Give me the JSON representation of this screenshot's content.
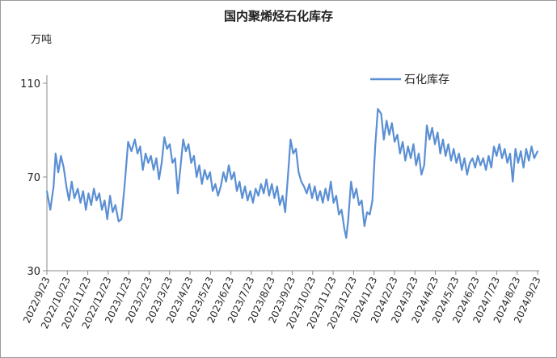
{
  "chart_data": {
    "type": "line",
    "title": "国内聚烯烃石化库存",
    "ylabel": "万吨",
    "ylim": [
      30,
      110
    ],
    "yticks": [
      30,
      70,
      110
    ],
    "legend_position": "top-right",
    "grid": false,
    "x_tick_labels": [
      "2022/9/23",
      "2022/10/23",
      "2022/11/23",
      "2022/12/23",
      "2023/1/23",
      "2023/2/23",
      "2023/3/23",
      "2023/4/23",
      "2023/5/23",
      "2023/6/23",
      "2023/7/23",
      "2023/8/23",
      "2023/9/23",
      "2023/10/23",
      "2023/11/23",
      "2023/12/23",
      "2024/1/23",
      "2024/2/23",
      "2024/3/23",
      "2024/4/23",
      "2024/5/23",
      "2024/6/23",
      "2024/7/23",
      "2024/8/23",
      "2024/9/23"
    ],
    "series": [
      {
        "name": "石化库存",
        "color": "#5b8fd4",
        "points": [
          [
            "2022-09-23",
            64
          ],
          [
            "2022-09-28",
            56
          ],
          [
            "2022-10-03",
            66
          ],
          [
            "2022-10-06",
            80
          ],
          [
            "2022-10-10",
            72
          ],
          [
            "2022-10-14",
            79
          ],
          [
            "2022-10-18",
            74
          ],
          [
            "2022-10-22",
            66
          ],
          [
            "2022-10-26",
            60
          ],
          [
            "2022-10-30",
            68
          ],
          [
            "2022-11-03",
            61
          ],
          [
            "2022-11-08",
            65
          ],
          [
            "2022-11-12",
            59
          ],
          [
            "2022-11-16",
            64
          ],
          [
            "2022-11-20",
            56
          ],
          [
            "2022-11-24",
            63
          ],
          [
            "2022-11-28",
            58
          ],
          [
            "2022-12-02",
            65
          ],
          [
            "2022-12-06",
            60
          ],
          [
            "2022-12-10",
            63
          ],
          [
            "2022-12-14",
            56
          ],
          [
            "2022-12-18",
            60
          ],
          [
            "2022-12-22",
            52
          ],
          [
            "2022-12-26",
            62
          ],
          [
            "2022-12-30",
            55
          ],
          [
            "2023-01-03",
            58
          ],
          [
            "2023-01-08",
            51
          ],
          [
            "2023-01-12",
            52
          ],
          [
            "2023-01-17",
            67
          ],
          [
            "2023-01-22",
            85
          ],
          [
            "2023-01-27",
            81
          ],
          [
            "2023-02-01",
            86
          ],
          [
            "2023-02-05",
            80
          ],
          [
            "2023-02-09",
            83
          ],
          [
            "2023-02-13",
            73
          ],
          [
            "2023-02-17",
            80
          ],
          [
            "2023-02-21",
            76
          ],
          [
            "2023-02-25",
            79
          ],
          [
            "2023-03-01",
            73
          ],
          [
            "2023-03-05",
            78
          ],
          [
            "2023-03-09",
            69
          ],
          [
            "2023-03-13",
            76
          ],
          [
            "2023-03-17",
            87
          ],
          [
            "2023-03-21",
            82
          ],
          [
            "2023-03-25",
            84
          ],
          [
            "2023-03-29",
            76
          ],
          [
            "2023-04-02",
            78
          ],
          [
            "2023-04-06",
            63
          ],
          [
            "2023-04-10",
            74
          ],
          [
            "2023-04-14",
            86
          ],
          [
            "2023-04-18",
            81
          ],
          [
            "2023-04-22",
            84
          ],
          [
            "2023-04-26",
            76
          ],
          [
            "2023-04-30",
            79
          ],
          [
            "2023-05-04",
            70
          ],
          [
            "2023-05-08",
            75
          ],
          [
            "2023-05-12",
            67
          ],
          [
            "2023-05-16",
            73
          ],
          [
            "2023-05-20",
            69
          ],
          [
            "2023-05-24",
            72
          ],
          [
            "2023-05-28",
            64
          ],
          [
            "2023-06-01",
            67
          ],
          [
            "2023-06-05",
            62
          ],
          [
            "2023-06-09",
            66
          ],
          [
            "2023-06-13",
            72
          ],
          [
            "2023-06-17",
            68
          ],
          [
            "2023-06-21",
            75
          ],
          [
            "2023-06-25",
            69
          ],
          [
            "2023-06-29",
            72
          ],
          [
            "2023-07-03",
            64
          ],
          [
            "2023-07-07",
            68
          ],
          [
            "2023-07-11",
            61
          ],
          [
            "2023-07-15",
            66
          ],
          [
            "2023-07-19",
            60
          ],
          [
            "2023-07-23",
            64
          ],
          [
            "2023-07-27",
            59
          ],
          [
            "2023-07-31",
            65
          ],
          [
            "2023-08-04",
            62
          ],
          [
            "2023-08-08",
            67
          ],
          [
            "2023-08-12",
            63
          ],
          [
            "2023-08-16",
            69
          ],
          [
            "2023-08-20",
            62
          ],
          [
            "2023-08-24",
            67
          ],
          [
            "2023-08-28",
            61
          ],
          [
            "2023-09-01",
            66
          ],
          [
            "2023-09-05",
            58
          ],
          [
            "2023-09-09",
            62
          ],
          [
            "2023-09-13",
            55
          ],
          [
            "2023-09-17",
            70
          ],
          [
            "2023-09-21",
            86
          ],
          [
            "2023-09-25",
            80
          ],
          [
            "2023-09-29",
            82
          ],
          [
            "2023-10-03",
            72
          ],
          [
            "2023-10-07",
            68
          ],
          [
            "2023-10-11",
            66
          ],
          [
            "2023-10-15",
            63
          ],
          [
            "2023-10-19",
            67
          ],
          [
            "2023-10-23",
            61
          ],
          [
            "2023-10-27",
            66
          ],
          [
            "2023-10-31",
            60
          ],
          [
            "2023-11-04",
            64
          ],
          [
            "2023-11-08",
            59
          ],
          [
            "2023-11-12",
            65
          ],
          [
            "2023-11-16",
            60
          ],
          [
            "2023-11-20",
            68
          ],
          [
            "2023-11-24",
            59
          ],
          [
            "2023-11-28",
            62
          ],
          [
            "2023-12-02",
            54
          ],
          [
            "2023-12-06",
            56
          ],
          [
            "2023-12-10",
            48
          ],
          [
            "2023-12-13",
            44
          ],
          [
            "2023-12-16",
            52
          ],
          [
            "2023-12-20",
            68
          ],
          [
            "2023-12-24",
            61
          ],
          [
            "2023-12-28",
            65
          ],
          [
            "2024-01-01",
            58
          ],
          [
            "2024-01-05",
            60
          ],
          [
            "2024-01-09",
            49
          ],
          [
            "2024-01-13",
            55
          ],
          [
            "2024-01-17",
            54
          ],
          [
            "2024-01-21",
            60
          ],
          [
            "2024-01-25",
            83
          ],
          [
            "2024-01-29",
            99
          ],
          [
            "2024-02-03",
            97
          ],
          [
            "2024-02-07",
            86
          ],
          [
            "2024-02-11",
            94
          ],
          [
            "2024-02-15",
            88
          ],
          [
            "2024-02-19",
            93
          ],
          [
            "2024-02-23",
            85
          ],
          [
            "2024-02-27",
            88
          ],
          [
            "2024-03-02",
            80
          ],
          [
            "2024-03-06",
            85
          ],
          [
            "2024-03-10",
            77
          ],
          [
            "2024-03-14",
            83
          ],
          [
            "2024-03-18",
            78
          ],
          [
            "2024-03-22",
            84
          ],
          [
            "2024-03-26",
            75
          ],
          [
            "2024-03-30",
            80
          ],
          [
            "2024-04-03",
            71
          ],
          [
            "2024-04-07",
            75
          ],
          [
            "2024-04-11",
            92
          ],
          [
            "2024-04-15",
            86
          ],
          [
            "2024-04-19",
            91
          ],
          [
            "2024-04-23",
            84
          ],
          [
            "2024-04-27",
            89
          ],
          [
            "2024-05-01",
            80
          ],
          [
            "2024-05-05",
            86
          ],
          [
            "2024-05-09",
            79
          ],
          [
            "2024-05-13",
            84
          ],
          [
            "2024-05-17",
            77
          ],
          [
            "2024-05-21",
            82
          ],
          [
            "2024-05-25",
            76
          ],
          [
            "2024-05-29",
            80
          ],
          [
            "2024-06-02",
            73
          ],
          [
            "2024-06-06",
            78
          ],
          [
            "2024-06-10",
            71
          ],
          [
            "2024-06-14",
            76
          ],
          [
            "2024-06-18",
            78
          ],
          [
            "2024-06-22",
            74
          ],
          [
            "2024-06-26",
            79
          ],
          [
            "2024-06-30",
            75
          ],
          [
            "2024-07-04",
            78
          ],
          [
            "2024-07-08",
            73
          ],
          [
            "2024-07-12",
            79
          ],
          [
            "2024-07-16",
            74
          ],
          [
            "2024-07-20",
            83
          ],
          [
            "2024-07-24",
            79
          ],
          [
            "2024-07-28",
            84
          ],
          [
            "2024-08-01",
            78
          ],
          [
            "2024-08-05",
            82
          ],
          [
            "2024-08-09",
            76
          ],
          [
            "2024-08-13",
            80
          ],
          [
            "2024-08-17",
            68
          ],
          [
            "2024-08-21",
            82
          ],
          [
            "2024-08-25",
            76
          ],
          [
            "2024-08-29",
            81
          ],
          [
            "2024-09-02",
            74
          ],
          [
            "2024-09-06",
            82
          ],
          [
            "2024-09-10",
            77
          ],
          [
            "2024-09-14",
            83
          ],
          [
            "2024-09-18",
            78
          ],
          [
            "2024-09-23",
            81
          ]
        ]
      }
    ]
  }
}
